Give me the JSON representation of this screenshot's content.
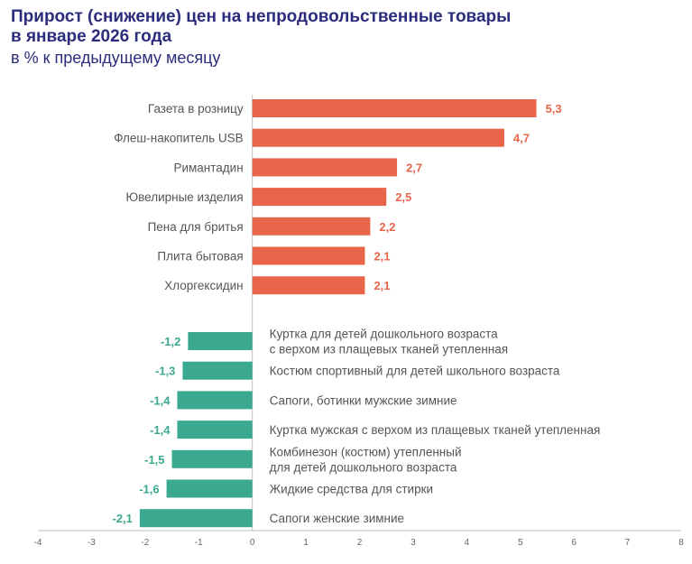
{
  "title_line1": "Прирост (снижение) цен на непродовольственные товары",
  "title_line2": "в январе 2026 года",
  "subtitle": "в % к предыдущему месяцу",
  "colors": {
    "positive": "#e8654a",
    "negative": "#3aa98f",
    "title": "#2b2d7c"
  },
  "chart_data": {
    "type": "bar",
    "orientation": "horizontal",
    "xlim": [
      -4,
      8
    ],
    "xticks": [
      -4,
      -3,
      -2,
      -1,
      0,
      1,
      2,
      3,
      4,
      5,
      6,
      7,
      8
    ],
    "grid": false,
    "positive": {
      "categories": [
        "Газета в розницу",
        "Флеш-накопитель USB",
        "Римантадин",
        "Ювелирные изделия",
        "Пена для бритья",
        "Плита бытовая",
        "Хлоргексидин"
      ],
      "values": [
        5.3,
        4.7,
        2.7,
        2.5,
        2.2,
        2.1,
        2.1
      ],
      "labels": [
        "5,3",
        "4,7",
        "2,7",
        "2,5",
        "2,2",
        "2,1",
        "2,1"
      ]
    },
    "negative": {
      "categories": [
        [
          "Куртка для детей дошкольного возраста",
          "с верхом из плащевых тканей утепленная"
        ],
        [
          "Костюм спортивный для детей  школьного возраста"
        ],
        [
          "Сапоги, ботинки мужские зимние"
        ],
        [
          "Куртка мужская с верхом из плащевых тканей утепленная"
        ],
        [
          "Комбинезон (костюм) утепленный",
          "для детей дошкольного возраста"
        ],
        [
          "Жидкие средства для стирки"
        ],
        [
          "Сапоги женские зимние"
        ]
      ],
      "values": [
        -1.2,
        -1.3,
        -1.4,
        -1.4,
        -1.5,
        -1.6,
        -2.1
      ],
      "labels": [
        "-1,2",
        "-1,3",
        "-1,4",
        "-1,4",
        "-1,5",
        "-1,6",
        "-2,1"
      ]
    }
  }
}
